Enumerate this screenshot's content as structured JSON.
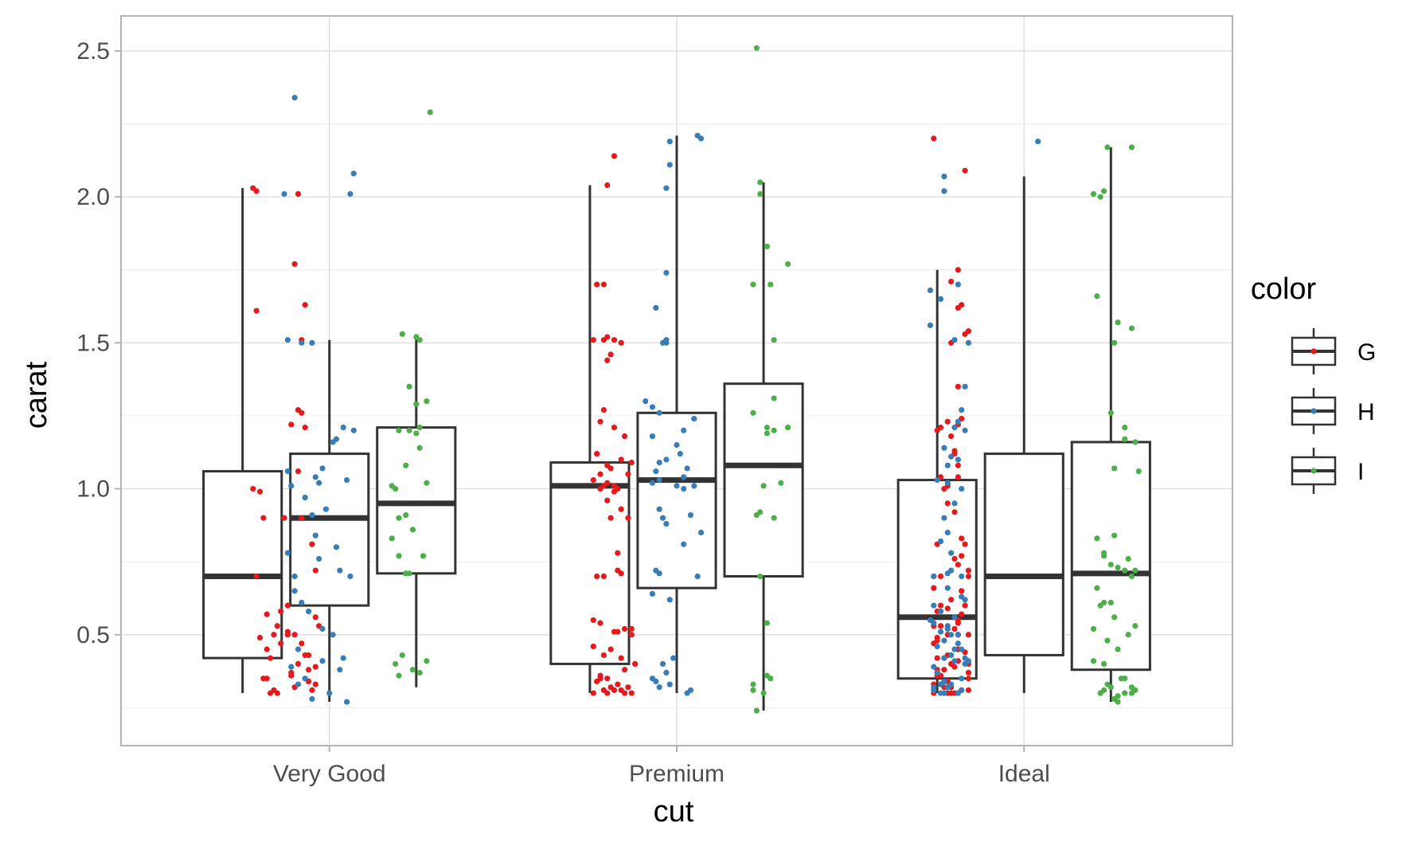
{
  "chart_data": {
    "type": "box",
    "title": "",
    "xlabel": "cut",
    "ylabel": "carat",
    "categories": [
      "Very Good",
      "Premium",
      "Ideal"
    ],
    "ylim": [
      0.12,
      2.62
    ],
    "yticks": [
      0.5,
      1.0,
      1.5,
      2.0,
      2.5
    ],
    "ytick_labels": [
      "0.5",
      "1.0",
      "1.5",
      "2.0",
      "2.5"
    ],
    "grid": true,
    "legend": {
      "title": "color",
      "placement": "right",
      "entries": [
        {
          "label": "G",
          "color": "#E41A1C"
        },
        {
          "label": "H",
          "color": "#377EB8"
        },
        {
          "label": "I",
          "color": "#4DAF4A"
        }
      ]
    },
    "boxes": [
      {
        "cut": "Very Good",
        "color": "G",
        "whisker_low": 0.3,
        "q1": 0.42,
        "median": 0.7,
        "q3": 1.06,
        "whisker_high": 2.03
      },
      {
        "cut": "Very Good",
        "color": "H",
        "whisker_low": 0.27,
        "q1": 0.6,
        "median": 0.9,
        "q3": 1.12,
        "whisker_high": 1.51
      },
      {
        "cut": "Very Good",
        "color": "I",
        "whisker_low": 0.32,
        "q1": 0.71,
        "median": 0.95,
        "q3": 1.21,
        "whisker_high": 1.53
      },
      {
        "cut": "Premium",
        "color": "G",
        "whisker_low": 0.3,
        "q1": 0.4,
        "median": 1.01,
        "q3": 1.09,
        "whisker_high": 2.04
      },
      {
        "cut": "Premium",
        "color": "H",
        "whisker_low": 0.3,
        "q1": 0.66,
        "median": 1.03,
        "q3": 1.26,
        "whisker_high": 2.21
      },
      {
        "cut": "Premium",
        "color": "I",
        "whisker_low": 0.24,
        "q1": 0.7,
        "median": 1.08,
        "q3": 1.36,
        "whisker_high": 2.05
      },
      {
        "cut": "Ideal",
        "color": "G",
        "whisker_low": 0.3,
        "q1": 0.35,
        "median": 0.56,
        "q3": 1.03,
        "whisker_high": 1.75
      },
      {
        "cut": "Ideal",
        "color": "H",
        "whisker_low": 0.3,
        "q1": 0.43,
        "median": 0.7,
        "q3": 1.12,
        "whisker_high": 2.07
      },
      {
        "cut": "Ideal",
        "color": "I",
        "whisker_low": 0.27,
        "q1": 0.38,
        "median": 0.71,
        "q3": 1.16,
        "whisker_high": 2.17
      }
    ],
    "points": [
      {
        "cut": "Very Good",
        "color": "G",
        "x_offset": [
          -0.22,
          -0.21,
          -0.09,
          -0.1,
          -0.07,
          -0.21,
          -0.08,
          -0.09,
          -0.08,
          -0.11,
          -0.07,
          -0.09,
          -0.22,
          -0.2,
          -0.13,
          -0.19,
          -0.08,
          -0.05,
          -0.04,
          -0.21,
          -0.12,
          -0.14,
          -0.18,
          -0.15,
          -0.03,
          -0.12,
          -0.16,
          -0.1,
          -0.2,
          -0.14,
          -0.18,
          -0.06,
          -0.07,
          -0.17,
          -0.09,
          -0.04,
          -0.11,
          -0.19,
          -0.06,
          -0.04,
          -0.1,
          -0.05,
          -0.16,
          -0.17,
          -0.15,
          -0.18,
          -0.08,
          -0.06,
          -0.12,
          -0.04,
          -0.11
        ],
        "y": [
          2.03,
          2.02,
          2.01,
          1.77,
          1.63,
          1.61,
          1.51,
          1.27,
          1.26,
          1.22,
          1.21,
          1.06,
          1.0,
          0.99,
          0.9,
          0.9,
          0.9,
          0.81,
          0.72,
          0.7,
          0.6,
          0.58,
          0.57,
          0.53,
          0.53,
          0.51,
          0.5,
          0.5,
          0.49,
          0.47,
          0.45,
          0.43,
          0.43,
          0.42,
          0.4,
          0.39,
          0.37,
          0.35,
          0.34,
          0.33,
          0.32,
          0.31,
          0.31,
          0.3,
          0.3,
          0.35,
          0.47,
          0.38,
          0.5,
          0.56,
          0.36
        ]
      },
      {
        "cut": "Very Good",
        "color": "H",
        "x_offset": [
          -0.1,
          0.07,
          0.06,
          -0.13,
          -0.12,
          -0.08,
          -0.05,
          0.04,
          0.07,
          0.01,
          -0.02,
          -0.12,
          -0.04,
          0.05,
          -0.03,
          -0.11,
          -0.07,
          -0.01,
          -0.05,
          -0.04,
          0.02,
          -0.12,
          -0.03,
          0.03,
          0.06,
          -0.1,
          -0.08,
          -0.06,
          -0.02,
          0.01,
          0.04,
          -0.02,
          -0.11,
          0.03,
          -0.07,
          -0.09,
          0.0,
          -0.05,
          0.05,
          -0.09,
          -0.1,
          0.02
        ],
        "y": [
          2.34,
          2.08,
          2.01,
          2.01,
          1.51,
          1.5,
          1.5,
          1.21,
          1.2,
          1.16,
          1.07,
          1.06,
          1.04,
          1.03,
          1.02,
          1.01,
          0.97,
          0.93,
          0.91,
          0.84,
          0.8,
          0.78,
          0.76,
          0.72,
          0.7,
          0.7,
          0.61,
          0.58,
          0.52,
          0.5,
          0.42,
          0.41,
          0.39,
          0.38,
          0.35,
          0.33,
          0.3,
          0.28,
          0.27,
          0.45,
          0.65,
          1.17
        ]
      },
      {
        "cut": "Very Good",
        "color": "I",
        "x_offset": [
          0.29,
          0.21,
          0.25,
          0.26,
          0.23,
          0.28,
          0.25,
          0.26,
          0.2,
          0.23,
          0.25,
          0.26,
          0.28,
          0.18,
          0.19,
          0.22,
          0.2,
          0.24,
          0.18,
          0.2,
          0.27,
          0.23,
          0.22,
          0.21,
          0.28,
          0.19,
          0.24,
          0.26,
          0.2,
          0.22
        ],
        "y": [
          2.29,
          1.53,
          1.52,
          1.51,
          1.35,
          1.3,
          1.29,
          1.21,
          1.2,
          1.2,
          1.19,
          1.14,
          1.02,
          1.01,
          1.0,
          0.91,
          0.9,
          0.86,
          0.83,
          0.77,
          0.77,
          0.71,
          0.71,
          0.43,
          0.41,
          0.4,
          0.38,
          0.37,
          0.36,
          1.08
        ]
      },
      {
        "cut": "Premium",
        "color": "G",
        "x_offset": [
          -0.18,
          -0.2,
          -0.21,
          -0.23,
          -0.2,
          -0.21,
          -0.24,
          -0.18,
          -0.16,
          -0.19,
          -0.2,
          -0.21,
          -0.22,
          -0.18,
          -0.15,
          -0.16,
          -0.13,
          -0.2,
          -0.19,
          -0.22,
          -0.14,
          -0.24,
          -0.2,
          -0.21,
          -0.18,
          -0.22,
          -0.17,
          -0.18,
          -0.2,
          -0.16,
          -0.19,
          -0.14,
          -0.17,
          -0.16,
          -0.21,
          -0.23,
          -0.24,
          -0.22,
          -0.15,
          -0.13,
          -0.17,
          -0.18,
          -0.13,
          -0.24,
          -0.21,
          -0.16,
          -0.12,
          -0.15,
          -0.22,
          -0.2,
          -0.23,
          -0.17,
          -0.14,
          -0.19,
          -0.18,
          -0.16,
          -0.2,
          -0.24,
          -0.13,
          -0.15,
          -0.21,
          -0.22,
          -0.19,
          -0.17,
          -0.23
        ],
        "y": [
          2.14,
          2.04,
          1.7,
          1.7,
          1.52,
          1.51,
          1.51,
          1.51,
          1.5,
          1.46,
          1.44,
          1.27,
          1.23,
          1.21,
          1.18,
          1.1,
          1.09,
          1.08,
          1.07,
          1.05,
          1.05,
          1.03,
          1.02,
          1.01,
          1.01,
          1.0,
          1.0,
          0.99,
          0.96,
          0.93,
          0.9,
          0.9,
          0.72,
          0.71,
          0.7,
          0.7,
          0.55,
          0.54,
          0.52,
          0.52,
          0.51,
          0.51,
          0.5,
          0.46,
          0.43,
          0.42,
          0.4,
          0.38,
          0.36,
          0.35,
          0.34,
          0.33,
          0.32,
          0.32,
          0.31,
          0.31,
          0.3,
          0.3,
          0.3,
          0.3,
          0.31,
          0.35,
          0.45,
          0.78,
          1.12
        ]
      },
      {
        "cut": "Premium",
        "color": "H",
        "x_offset": [
          0.06,
          0.07,
          -0.02,
          -0.02,
          -0.03,
          -0.03,
          -0.06,
          -0.03,
          -0.04,
          -0.03,
          -0.09,
          -0.07,
          -0.05,
          0.05,
          0.02,
          -0.07,
          0.0,
          0.01,
          -0.03,
          0.03,
          -0.06,
          0.02,
          -0.05,
          -0.07,
          0.0,
          0.05,
          0.02,
          -0.05,
          0.04,
          -0.04,
          0.07,
          0.02,
          -0.06,
          -0.05,
          0.06,
          -0.07,
          -0.02,
          -0.01,
          -0.04,
          -0.03,
          -0.07,
          -0.06,
          -0.02,
          -0.05,
          0.04,
          0.03,
          -0.05,
          -0.03
        ],
        "y": [
          2.21,
          2.2,
          2.19,
          2.11,
          2.03,
          1.74,
          1.62,
          1.51,
          1.5,
          1.5,
          1.3,
          1.28,
          1.26,
          1.24,
          1.2,
          1.18,
          1.15,
          1.12,
          1.1,
          1.07,
          1.06,
          1.04,
          1.03,
          1.02,
          1.01,
          1.01,
          1.0,
          0.93,
          0.91,
          0.9,
          0.85,
          0.81,
          0.72,
          0.71,
          0.7,
          0.64,
          0.62,
          0.42,
          0.4,
          0.37,
          0.35,
          0.34,
          0.33,
          0.32,
          0.31,
          0.3,
          1.09,
          0.88
        ]
      },
      {
        "cut": "Premium",
        "color": "I",
        "x_offset": [
          0.23,
          0.24,
          0.24,
          0.26,
          0.32,
          0.22,
          0.27,
          0.28,
          0.28,
          0.22,
          0.32,
          0.26,
          0.28,
          0.26,
          0.3,
          0.25,
          0.24,
          0.23,
          0.28,
          0.24,
          0.26,
          0.26,
          0.27,
          0.22,
          0.22,
          0.25,
          0.23
        ],
        "y": [
          2.51,
          2.05,
          2.01,
          1.83,
          1.77,
          1.7,
          1.7,
          1.51,
          1.31,
          1.26,
          1.21,
          1.21,
          1.2,
          1.19,
          1.02,
          1.01,
          0.92,
          0.91,
          0.9,
          0.7,
          0.54,
          0.36,
          0.35,
          0.33,
          0.31,
          0.3,
          0.24
        ]
      },
      {
        "cut": "Ideal",
        "color": "G",
        "x_offset": [
          -0.26,
          -0.17,
          -0.19,
          -0.21,
          -0.18,
          -0.19,
          -0.16,
          -0.17,
          -0.21,
          -0.19,
          -0.18,
          -0.22,
          -0.19,
          -0.24,
          -0.25,
          -0.21,
          -0.2,
          -0.2,
          -0.19,
          -0.24,
          -0.22,
          -0.23,
          -0.2,
          -0.18,
          -0.17,
          -0.25,
          -0.18,
          -0.2,
          -0.19,
          -0.16,
          -0.26,
          -0.16,
          -0.24,
          -0.26,
          -0.24,
          -0.17,
          -0.22,
          -0.25,
          -0.18,
          -0.19,
          -0.19,
          -0.24,
          -0.26,
          -0.2,
          -0.19,
          -0.16,
          -0.22,
          -0.25,
          -0.26,
          -0.19,
          -0.22,
          -0.23,
          -0.25,
          -0.19,
          -0.16,
          -0.2,
          -0.25,
          -0.16,
          -0.24,
          -0.16,
          -0.22,
          -0.24,
          -0.26,
          -0.21,
          -0.23,
          -0.26,
          -0.16,
          -0.18,
          -0.22,
          -0.2,
          -0.21,
          -0.26,
          -0.25,
          -0.17,
          -0.25,
          -0.21,
          -0.18,
          -0.22,
          -0.19,
          -0.21,
          -0.2,
          -0.23
        ],
        "y": [
          2.2,
          2.09,
          1.75,
          1.71,
          1.63,
          1.62,
          1.54,
          1.53,
          1.5,
          1.35,
          1.24,
          1.23,
          1.22,
          1.21,
          1.2,
          1.18,
          1.13,
          1.12,
          1.04,
          1.04,
          1.01,
          1.0,
          0.92,
          0.83,
          0.81,
          0.81,
          0.77,
          0.76,
          0.74,
          0.72,
          0.7,
          0.7,
          0.7,
          0.66,
          0.6,
          0.6,
          0.59,
          0.58,
          0.57,
          0.55,
          0.54,
          0.53,
          0.53,
          0.52,
          0.5,
          0.5,
          0.5,
          0.49,
          0.47,
          0.45,
          0.43,
          0.42,
          0.42,
          0.41,
          0.4,
          0.39,
          0.38,
          0.37,
          0.36,
          0.35,
          0.34,
          0.33,
          0.33,
          0.32,
          0.32,
          0.31,
          0.31,
          0.31,
          0.3,
          0.3,
          0.3,
          0.3,
          0.36,
          0.44,
          0.48,
          0.62,
          0.65,
          0.95,
          1.08,
          0.4,
          0.56,
          0.38
        ]
      },
      {
        "cut": "Ideal",
        "color": "H",
        "x_offset": [
          0.04,
          -0.23,
          -0.23,
          -0.19,
          -0.27,
          -0.24,
          -0.27,
          -0.2,
          -0.16,
          -0.17,
          -0.18,
          -0.19,
          -0.2,
          -0.17,
          -0.23,
          -0.21,
          -0.19,
          -0.25,
          -0.22,
          -0.18,
          -0.23,
          -0.22,
          -0.21,
          -0.22,
          -0.26,
          -0.18,
          -0.17,
          -0.24,
          -0.2,
          -0.27,
          -0.26,
          -0.22,
          -0.24,
          -0.19,
          -0.21,
          -0.23,
          -0.19,
          -0.25,
          -0.18,
          -0.21,
          -0.23,
          -0.2,
          -0.16,
          -0.17,
          -0.26,
          -0.25,
          -0.18,
          -0.23,
          -0.21,
          -0.24,
          -0.22,
          -0.26,
          -0.18,
          -0.26,
          -0.19,
          -0.24,
          -0.23,
          -0.17,
          -0.2,
          -0.22,
          -0.26,
          -0.18,
          -0.22,
          -0.21,
          -0.24,
          -0.2,
          -0.22
        ],
        "y": [
          2.19,
          2.07,
          2.02,
          1.7,
          1.68,
          1.65,
          1.56,
          1.51,
          1.5,
          1.35,
          1.27,
          1.23,
          1.21,
          1.2,
          1.14,
          1.11,
          1.1,
          1.03,
          1.02,
          1.0,
          0.9,
          0.85,
          0.78,
          0.71,
          0.7,
          0.7,
          0.62,
          0.58,
          0.56,
          0.55,
          0.54,
          0.53,
          0.51,
          0.5,
          0.5,
          0.48,
          0.47,
          0.46,
          0.45,
          0.43,
          0.42,
          0.41,
          0.41,
          0.4,
          0.39,
          0.37,
          0.35,
          0.34,
          0.33,
          0.33,
          0.32,
          0.32,
          0.31,
          0.31,
          0.3,
          0.3,
          0.3,
          0.42,
          0.45,
          0.52,
          0.6,
          0.63,
          0.66,
          0.72,
          0.82,
          0.95,
          1.08
        ]
      },
      {
        "cut": "Ideal",
        "color": "I",
        "x_offset": [
          0.31,
          0.24,
          0.23,
          0.2,
          0.22,
          0.21,
          0.27,
          0.31,
          0.26,
          0.25,
          0.29,
          0.29,
          0.32,
          0.26,
          0.33,
          0.26,
          0.21,
          0.23,
          0.23,
          0.3,
          0.25,
          0.27,
          0.29,
          0.32,
          0.31,
          0.21,
          0.25,
          0.23,
          0.22,
          0.26,
          0.32,
          0.2,
          0.3,
          0.24,
          0.27,
          0.2,
          0.23,
          0.28,
          0.29,
          0.24,
          0.25,
          0.31,
          0.32,
          0.23,
          0.31,
          0.29,
          0.22,
          0.22,
          0.27,
          0.26,
          0.27
        ],
        "y": [
          2.17,
          2.17,
          2.02,
          2.01,
          2.0,
          1.66,
          1.57,
          1.55,
          1.5,
          1.26,
          1.21,
          1.17,
          1.16,
          1.07,
          1.06,
          0.84,
          0.83,
          0.78,
          0.77,
          0.76,
          0.74,
          0.73,
          0.72,
          0.72,
          0.7,
          0.66,
          0.61,
          0.61,
          0.6,
          0.56,
          0.53,
          0.52,
          0.5,
          0.48,
          0.45,
          0.41,
          0.4,
          0.35,
          0.35,
          0.33,
          0.32,
          0.32,
          0.31,
          0.31,
          0.3,
          0.3,
          0.3,
          0.3,
          0.29,
          0.28,
          0.27
        ]
      }
    ]
  }
}
